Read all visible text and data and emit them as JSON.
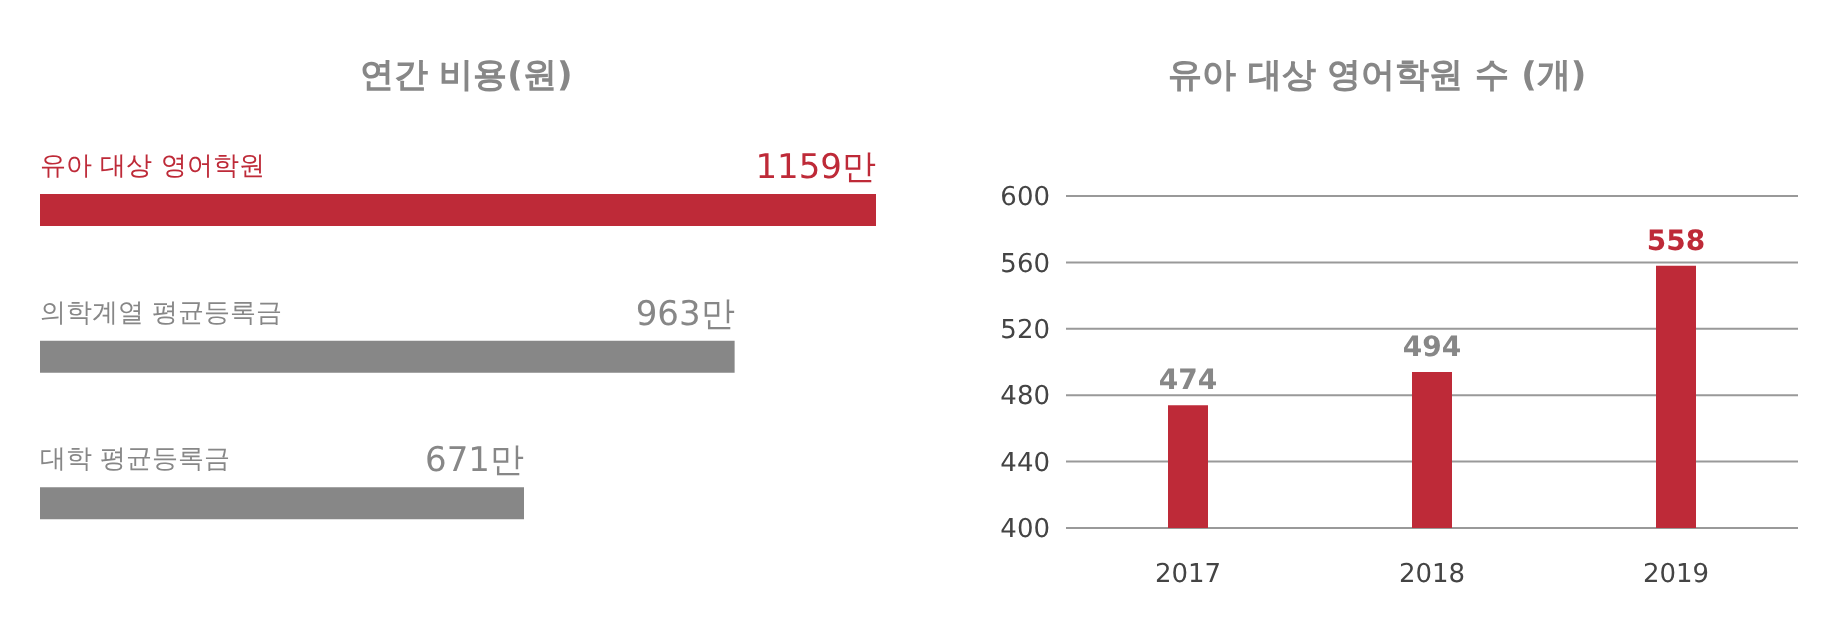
{
  "chart_data": [
    {
      "type": "bar",
      "title": "연간 비용(원)",
      "orientation": "horizontal",
      "categories": [
        "유아 대상 영어학원",
        "의학계열 평균등록금",
        "대학 평균등록금"
      ],
      "values": [
        1159,
        963,
        671
      ],
      "value_labels": [
        "1159만",
        "963만",
        "671만"
      ],
      "colors": [
        "#be2a38",
        "#878787",
        "#878787"
      ]
    },
    {
      "type": "bar",
      "title": "유아 대상 영어학원 수 (개)",
      "categories": [
        "2017",
        "2018",
        "2019"
      ],
      "values": [
        474,
        494,
        558
      ],
      "color": "#be2a38",
      "ylim": [
        400,
        600
      ],
      "yticks": [
        400,
        440,
        480,
        520,
        560,
        600
      ],
      "grid": "y",
      "data_labels": true
    }
  ]
}
